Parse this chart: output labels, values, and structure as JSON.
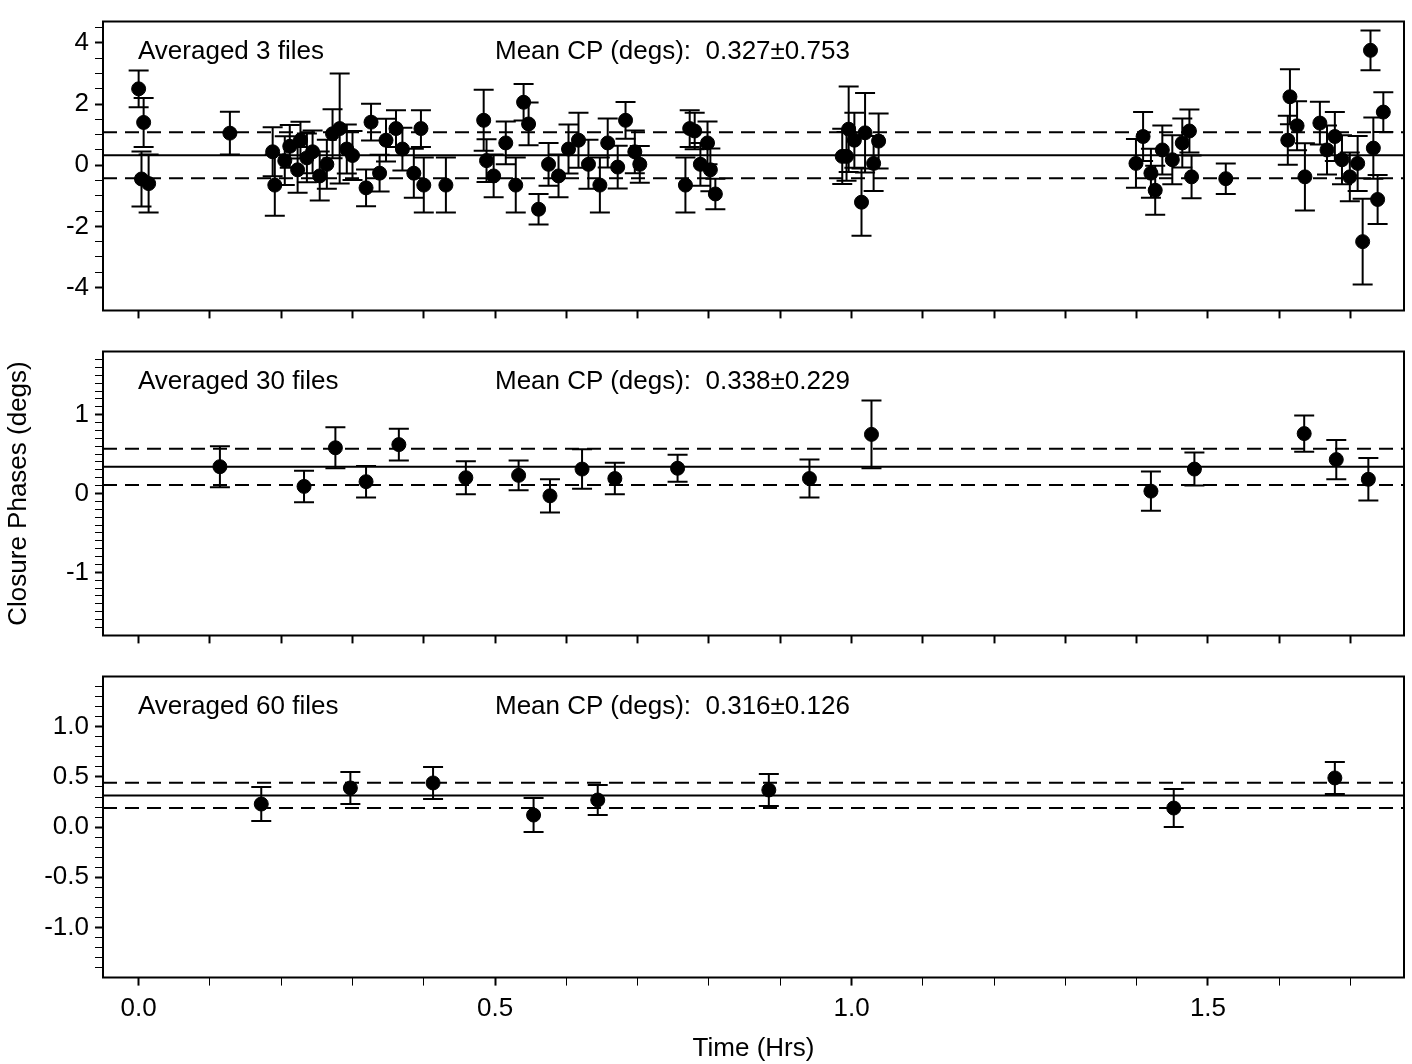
{
  "chart_data": [
    {
      "type": "scatter",
      "marker": "circle",
      "tick_labels": "y",
      "annotations": [
        "Averaged 3 files",
        "Mean CP (degs):  0.327±0.753"
      ],
      "xlim": [
        -0.05,
        1.775
      ],
      "xticks": [
        0,
        0.1,
        0.2,
        0.3,
        0.4,
        0.5,
        0.6,
        0.7,
        0.8,
        0.9,
        1,
        1.1,
        1.2,
        1.3,
        1.4,
        1.5,
        1.6,
        1.7
      ],
      "ylim": [
        -4.75,
        4.7
      ],
      "yticks": [
        -4,
        {
          "value": -3.5,
          "label": null
        },
        {
          "value": -3,
          "label": null
        },
        {
          "value": -2.5,
          "label": null
        },
        -2,
        {
          "value": -1.5,
          "label": null
        },
        {
          "value": -1,
          "label": null
        },
        {
          "value": -0.5,
          "label": null
        },
        0,
        {
          "value": 0.5,
          "label": null
        },
        {
          "value": 1,
          "label": null
        },
        {
          "value": 1.5,
          "label": null
        },
        2,
        {
          "value": 2.5,
          "label": null
        },
        {
          "value": 3,
          "label": null
        },
        {
          "value": 3.5,
          "label": null
        },
        4,
        {
          "value": 4.5,
          "label": null
        }
      ],
      "ref_lines": [
        {
          "axis": "y",
          "value": 0.327,
          "line_style": "solid"
        },
        {
          "axis": "y",
          "value": 1.08,
          "line_style": "dashed"
        },
        {
          "axis": "y",
          "value": -0.426,
          "line_style": "dashed"
        }
      ],
      "series": [
        {
          "color": "#000000",
          "x": [
            0.0,
            0.007,
            0.004,
            0.014,
            0.128,
            0.188,
            0.191,
            0.205,
            0.212,
            0.223,
            0.227,
            0.236,
            0.244,
            0.254,
            0.264,
            0.272,
            0.282,
            0.292,
            0.3,
            0.319,
            0.326,
            0.338,
            0.347,
            0.361,
            0.37,
            0.386,
            0.396,
            0.4,
            0.431,
            0.484,
            0.488,
            0.498,
            0.515,
            0.529,
            0.54,
            0.547,
            0.561,
            0.575,
            0.589,
            0.603,
            0.617,
            0.631,
            0.647,
            0.658,
            0.672,
            0.683,
            0.696,
            0.703,
            0.767,
            0.773,
            0.78,
            0.788,
            0.798,
            0.802,
            0.809,
            0.987,
            0.996,
            1.004,
            1.014,
            1.019,
            1.031,
            1.038,
            0.993,
            1.399,
            1.409,
            1.42,
            1.426,
            1.436,
            1.45,
            1.464,
            1.474,
            1.477,
            1.525,
            1.615,
            1.612,
            1.625,
            1.636,
            1.657,
            1.667,
            1.678,
            1.688,
            1.699,
            1.717,
            1.728,
            1.732,
            1.738,
            1.746,
            1.71
          ],
          "values": [
            2.5,
            1.4,
            -0.45,
            -0.6,
            1.05,
            0.44,
            -0.65,
            0.15,
            0.62,
            -0.15,
            0.82,
            0.24,
            0.44,
            -0.35,
            0.03,
            1.03,
            1.2,
            0.53,
            0.32,
            -0.74,
            1.41,
            -0.26,
            0.82,
            1.2,
            0.53,
            -0.26,
            1.2,
            -0.65,
            -0.65,
            1.47,
            0.15,
            -0.35,
            0.73,
            -0.65,
            2.06,
            1.35,
            -1.44,
            0.03,
            -0.35,
            0.53,
            0.82,
            0.03,
            -0.65,
            0.73,
            -0.06,
            1.47,
            0.44,
            0.03,
            -0.65,
            1.2,
            1.12,
            0.03,
            0.73,
            -0.15,
            -0.94,
            0.29,
            1.18,
            0.82,
            -1.21,
            1.06,
            0.06,
            0.79,
            0.29,
            0.06,
            0.94,
            -0.26,
            -0.82,
            0.5,
            0.18,
            0.73,
            1.12,
            -0.38,
            -0.44,
            2.24,
            0.82,
            1.29,
            -0.38,
            1.38,
            0.5,
            0.94,
            0.18,
            -0.38,
            -2.5,
            3.76,
            0.56,
            -1.12,
            1.74,
            0.06
          ],
          "errors": [
            0.6,
            0.8,
            0.9,
            0.95,
            0.7,
            0.8,
            1.0,
            0.8,
            0.7,
            0.75,
            0.6,
            0.8,
            0.7,
            0.8,
            0.8,
            0.8,
            1.8,
            0.8,
            0.8,
            0.6,
            0.6,
            0.6,
            0.7,
            0.6,
            0.7,
            0.8,
            0.6,
            0.9,
            0.9,
            1.0,
            0.7,
            0.7,
            0.7,
            0.9,
            0.6,
            0.7,
            0.5,
            0.7,
            0.7,
            0.8,
            0.9,
            0.8,
            0.9,
            0.8,
            0.7,
            0.6,
            0.7,
            0.6,
            0.9,
            0.6,
            0.6,
            0.7,
            0.7,
            0.7,
            0.5,
            0.9,
            1.4,
            0.9,
            1.1,
            1.3,
            0.9,
            0.9,
            0.8,
            0.8,
            0.8,
            0.8,
            0.8,
            0.8,
            0.8,
            0.8,
            0.7,
            0.7,
            0.5,
            0.9,
            0.8,
            0.8,
            1.1,
            0.7,
            0.8,
            0.8,
            0.8,
            0.8,
            1.4,
            0.65,
            1.0,
            0.8,
            0.65,
            0.9
          ]
        }
      ]
    },
    {
      "type": "scatter",
      "marker": "circle",
      "tick_labels": "y",
      "ylabel": "Closure Phases (degs)",
      "annotations": [
        "Averaged 30 files",
        "Mean CP (degs):  0.338±0.229"
      ],
      "xlim": [
        -0.05,
        1.775
      ],
      "xticks": [
        0,
        0.1,
        0.2,
        0.3,
        0.4,
        0.5,
        0.6,
        0.7,
        0.8,
        0.9,
        1,
        1.1,
        1.2,
        1.3,
        1.4,
        1.5,
        1.6,
        1.7
      ],
      "ylim": [
        -1.8,
        1.8
      ],
      "yticks": [
        {
          "value": -1.7,
          "label": null
        },
        {
          "value": -1.6,
          "label": null
        },
        {
          "value": -1.5,
          "label": null
        },
        {
          "value": -1.4,
          "label": null
        },
        {
          "value": -1.3,
          "label": null
        },
        {
          "value": -1.2,
          "label": null
        },
        {
          "value": -1.1,
          "label": null
        },
        -1,
        {
          "value": -0.9,
          "label": null
        },
        {
          "value": -0.8,
          "label": null
        },
        {
          "value": -0.7,
          "label": null
        },
        {
          "value": -0.6,
          "label": null
        },
        {
          "value": -0.5,
          "label": null
        },
        {
          "value": -0.4,
          "label": null
        },
        {
          "value": -0.3,
          "label": null
        },
        {
          "value": -0.2,
          "label": null
        },
        {
          "value": -0.1,
          "label": null
        },
        0,
        {
          "value": 0.1,
          "label": null
        },
        {
          "value": 0.2,
          "label": null
        },
        {
          "value": 0.3,
          "label": null
        },
        {
          "value": 0.4,
          "label": null
        },
        {
          "value": 0.5,
          "label": null
        },
        {
          "value": 0.6,
          "label": null
        },
        {
          "value": 0.7,
          "label": null
        },
        {
          "value": 0.8,
          "label": null
        },
        {
          "value": 0.9,
          "label": null
        },
        1,
        {
          "value": 1.1,
          "label": null
        },
        {
          "value": 1.2,
          "label": null
        },
        {
          "value": 1.3,
          "label": null
        },
        {
          "value": 1.4,
          "label": null
        },
        {
          "value": 1.5,
          "label": null
        },
        {
          "value": 1.6,
          "label": null
        },
        {
          "value": 1.7,
          "label": null
        }
      ],
      "ref_lines": [
        {
          "axis": "y",
          "value": 0.338,
          "line_style": "solid"
        },
        {
          "axis": "y",
          "value": 0.567,
          "line_style": "dashed"
        },
        {
          "axis": "y",
          "value": 0.109,
          "line_style": "dashed"
        }
      ],
      "series": [
        {
          "color": "#000000",
          "x": [
            0.114,
            0.232,
            0.276,
            0.319,
            0.365,
            0.459,
            0.533,
            0.577,
            0.622,
            0.668,
            0.756,
            0.941,
            1.028,
            1.42,
            1.481,
            1.635,
            1.68,
            1.725
          ],
          "values": [
            0.34,
            0.09,
            0.58,
            0.15,
            0.62,
            0.2,
            0.23,
            -0.03,
            0.31,
            0.19,
            0.32,
            0.19,
            0.75,
            0.03,
            0.31,
            0.76,
            0.43,
            0.18
          ],
          "errors": [
            0.26,
            0.2,
            0.26,
            0.2,
            0.2,
            0.21,
            0.19,
            0.21,
            0.25,
            0.2,
            0.17,
            0.24,
            0.43,
            0.25,
            0.21,
            0.23,
            0.25,
            0.27
          ]
        }
      ]
    },
    {
      "type": "scatter",
      "marker": "circle",
      "xlabel": "Time (Hrs)",
      "annotations": [
        "Averaged 60 files",
        "Mean CP (degs):  0.316±0.126"
      ],
      "xlim": [
        -0.05,
        1.775
      ],
      "xticks": [
        {
          "value": 0,
          "label": "0.0"
        },
        {
          "value": 0.1,
          "label": null
        },
        {
          "value": 0.2,
          "label": null
        },
        {
          "value": 0.3,
          "label": null
        },
        {
          "value": 0.4,
          "label": null
        },
        {
          "value": 0.5,
          "label": "0.5"
        },
        {
          "value": 0.6,
          "label": null
        },
        {
          "value": 0.7,
          "label": null
        },
        {
          "value": 0.8,
          "label": null
        },
        {
          "value": 0.9,
          "label": null
        },
        {
          "value": 1,
          "label": "1.0"
        },
        {
          "value": 1.1,
          "label": null
        },
        {
          "value": 1.2,
          "label": null
        },
        {
          "value": 1.3,
          "label": null
        },
        {
          "value": 1.4,
          "label": null
        },
        {
          "value": 1.5,
          "label": "1.5"
        },
        {
          "value": 1.6,
          "label": null
        },
        {
          "value": 1.7,
          "label": null
        }
      ],
      "ylim": [
        -1.5,
        1.5
      ],
      "yticks": [
        {
          "value": -1.4,
          "label": null
        },
        {
          "value": -1.3,
          "label": null
        },
        {
          "value": -1.2,
          "label": null
        },
        {
          "value": -1.1,
          "label": null
        },
        {
          "value": -1,
          "label": "-1.0"
        },
        {
          "value": -0.9,
          "label": null
        },
        {
          "value": -0.8,
          "label": null
        },
        {
          "value": -0.7,
          "label": null
        },
        {
          "value": -0.6,
          "label": null
        },
        -0.5,
        {
          "value": -0.4,
          "label": null
        },
        {
          "value": -0.3,
          "label": null
        },
        {
          "value": -0.2,
          "label": null
        },
        {
          "value": -0.1,
          "label": null
        },
        {
          "value": 0,
          "label": "0.0"
        },
        {
          "value": 0.1,
          "label": null
        },
        {
          "value": 0.2,
          "label": null
        },
        {
          "value": 0.3,
          "label": null
        },
        {
          "value": 0.4,
          "label": null
        },
        0.5,
        {
          "value": 0.6,
          "label": null
        },
        {
          "value": 0.7,
          "label": null
        },
        {
          "value": 0.8,
          "label": null
        },
        {
          "value": 0.9,
          "label": null
        },
        {
          "value": 1,
          "label": "1.0"
        },
        {
          "value": 1.1,
          "label": null
        },
        {
          "value": 1.2,
          "label": null
        },
        {
          "value": 1.3,
          "label": null
        },
        {
          "value": 1.4,
          "label": null
        }
      ],
      "ref_lines": [
        {
          "axis": "y",
          "value": 0.316,
          "line_style": "solid"
        },
        {
          "axis": "y",
          "value": 0.442,
          "line_style": "dashed"
        },
        {
          "axis": "y",
          "value": 0.19,
          "line_style": "dashed"
        }
      ],
      "series": [
        {
          "color": "#000000",
          "x": [
            0.172,
            0.297,
            0.413,
            0.554,
            0.644,
            0.884,
            1.452,
            1.678
          ],
          "values": [
            0.23,
            0.39,
            0.44,
            0.12,
            0.27,
            0.37,
            0.19,
            0.49
          ],
          "errors": [
            0.17,
            0.16,
            0.16,
            0.17,
            0.15,
            0.16,
            0.19,
            0.16
          ]
        }
      ]
    }
  ]
}
